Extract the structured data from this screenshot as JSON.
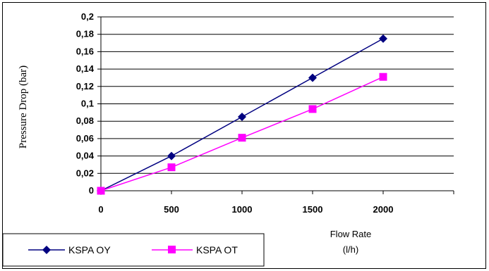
{
  "chart_data": {
    "type": "line",
    "x": [
      0,
      500,
      1000,
      1500,
      2000
    ],
    "xticks": [
      "0",
      "500",
      "1000",
      "1500",
      "2000"
    ],
    "xlim": [
      0,
      2500
    ],
    "yticks": [
      "0",
      "0,02",
      "0,04",
      "0,06",
      "0,08",
      "0,1",
      "0,12",
      "0,14",
      "0,16",
      "0,18",
      "0,2"
    ],
    "ylim": [
      0,
      0.2
    ],
    "ylabel": "Pressure Drop (bar)",
    "xlabel_line1": "Flow Rate",
    "xlabel_line2": "(l/h)",
    "grid": true,
    "legend_position": "bottom-left",
    "series": [
      {
        "name": "KSPA OY",
        "values": [
          0,
          0.04,
          0.085,
          0.13,
          0.175
        ],
        "color": "#000080",
        "marker": "diamond"
      },
      {
        "name": "KSPA OT",
        "values": [
          0,
          0.027,
          0.061,
          0.094,
          0.131
        ],
        "color": "#ff00ff",
        "marker": "square"
      }
    ]
  }
}
